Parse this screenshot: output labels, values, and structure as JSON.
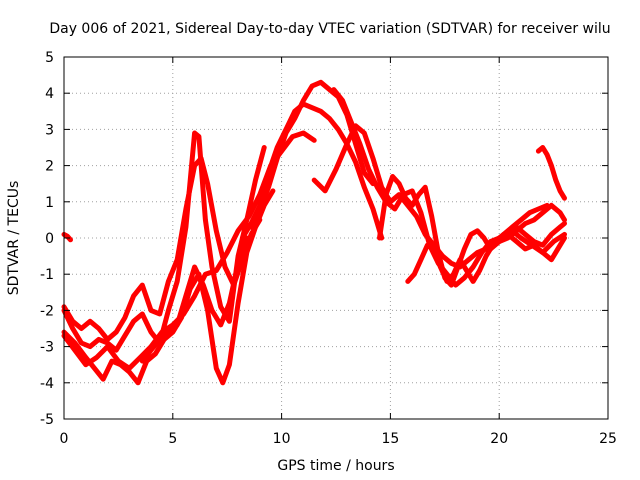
{
  "chart_data": {
    "type": "scatter",
    "title": "Day 006 of 2021, Sidereal Day-to-day VTEC variation (SDTVAR) for receiver wilu",
    "xlabel": "GPS time / hours",
    "ylabel": "SDTVAR / TECUs",
    "xlim": [
      0,
      25
    ],
    "ylim": [
      -5,
      5
    ],
    "xticks": [
      "0",
      "5",
      "10",
      "15",
      "20",
      "25"
    ],
    "yticks": [
      "-5",
      "-4",
      "-3",
      "-2",
      "-1",
      "0",
      "1",
      "2",
      "3",
      "4",
      "5"
    ],
    "grid": true,
    "marker": "+",
    "color": "#ff0000",
    "series": [
      {
        "name": "track-01",
        "x": [
          0.0,
          0.15,
          0.3
        ],
        "y": [
          0.1,
          0.05,
          -0.05
        ]
      },
      {
        "name": "track-02",
        "x": [
          0.0,
          0.4,
          0.8,
          1.2,
          1.6,
          2.0,
          2.4,
          2.8,
          3.2,
          3.6,
          4.0,
          4.4,
          4.8,
          5.2,
          5.6,
          6.0,
          6.3,
          6.6,
          7.0,
          7.4,
          7.8,
          8.2,
          8.6,
          9.0
        ],
        "y": [
          -1.9,
          -2.3,
          -2.5,
          -2.3,
          -2.5,
          -2.8,
          -2.6,
          -2.2,
          -1.6,
          -1.3,
          -2.0,
          -2.1,
          -1.2,
          -0.6,
          0.8,
          2.0,
          2.2,
          1.5,
          0.2,
          -0.8,
          -1.3,
          -0.6,
          0.1,
          0.5
        ]
      },
      {
        "name": "track-03",
        "x": [
          0.0,
          0.4,
          0.8,
          1.2,
          1.6,
          2.0,
          2.4,
          2.8,
          3.2,
          3.6,
          4.0,
          4.4,
          4.8,
          5.2,
          5.6,
          6.0,
          6.2,
          6.5,
          6.8,
          7.2,
          7.6,
          8.0,
          8.4,
          8.8,
          9.2
        ],
        "y": [
          -2.0,
          -2.5,
          -2.9,
          -3.0,
          -2.8,
          -2.9,
          -3.1,
          -2.7,
          -2.3,
          -2.1,
          -2.6,
          -2.9,
          -2.0,
          -1.2,
          0.3,
          2.9,
          2.8,
          0.5,
          -0.8,
          -1.9,
          -2.3,
          -0.5,
          0.5,
          1.6,
          2.5
        ]
      },
      {
        "name": "track-04",
        "x": [
          0.0,
          0.5,
          1.0,
          1.4,
          1.8,
          2.2,
          2.6,
          3.0,
          3.4,
          3.8,
          4.2,
          4.6,
          5.0,
          5.4,
          5.8,
          6.2,
          6.6,
          7.0,
          7.3,
          7.6,
          8.0,
          8.4,
          8.8,
          9.2,
          9.6
        ],
        "y": [
          -2.6,
          -2.9,
          -3.3,
          -3.6,
          -3.9,
          -3.4,
          -3.5,
          -3.7,
          -4.0,
          -3.4,
          -3.2,
          -2.8,
          -2.6,
          -2.2,
          -1.4,
          -1.0,
          -2.0,
          -3.6,
          -4.0,
          -3.5,
          -1.8,
          -0.4,
          0.3,
          0.9,
          1.3
        ]
      },
      {
        "name": "track-05",
        "x": [
          0.0,
          0.5,
          1.0,
          1.5,
          2.0,
          2.5,
          3.0,
          3.5,
          4.0,
          4.5,
          5.0,
          5.5,
          6.0,
          6.5,
          7.0,
          7.5,
          8.0,
          8.5,
          9.0,
          9.5,
          10.0,
          10.5,
          11.0,
          11.5
        ],
        "y": [
          -2.7,
          -3.1,
          -3.5,
          -3.3,
          -3.0,
          -3.4,
          -3.6,
          -3.3,
          -3.0,
          -2.6,
          -2.4,
          -2.1,
          -1.6,
          -1.0,
          -0.9,
          -0.4,
          0.2,
          0.6,
          1.2,
          2.0,
          2.4,
          2.8,
          2.9,
          2.7
        ]
      },
      {
        "name": "track-06",
        "x": [
          3.6,
          4.0,
          4.4,
          4.8,
          5.2,
          5.6,
          6.0,
          6.4,
          6.8,
          7.2,
          7.6,
          8.0,
          8.4
        ],
        "y": [
          -3.4,
          -3.1,
          -2.8,
          -2.6,
          -2.4,
          -1.6,
          -0.8,
          -1.3,
          -2.0,
          -2.4,
          -1.8,
          -0.7,
          0.0
        ]
      },
      {
        "name": "track-07",
        "x": [
          8.2,
          8.6,
          9.0,
          9.4,
          9.8,
          10.2,
          10.6,
          11.0,
          11.4,
          11.8,
          12.2,
          12.6,
          13.0,
          13.4,
          13.8,
          14.2,
          14.6
        ],
        "y": [
          0.0,
          0.4,
          0.9,
          1.8,
          2.5,
          3.0,
          3.5,
          3.7,
          3.6,
          3.5,
          3.3,
          3.0,
          2.6,
          2.1,
          1.4,
          0.8,
          0.0
        ]
      },
      {
        "name": "track-08",
        "x": [
          8.6,
          9.0,
          9.4,
          9.8,
          10.2,
          10.6,
          11.0,
          11.4,
          11.8,
          12.2,
          12.6,
          13.0,
          13.4,
          13.8,
          14.2
        ],
        "y": [
          0.3,
          0.8,
          1.4,
          2.2,
          2.9,
          3.3,
          3.8,
          4.2,
          4.3,
          4.1,
          3.9,
          3.4,
          2.6,
          1.8,
          1.5
        ]
      },
      {
        "name": "track-09",
        "x": [
          11.5,
          12.0,
          12.5,
          13.0,
          13.4,
          13.8,
          14.2,
          14.6,
          15.0,
          15.4,
          15.8,
          16.2,
          16.6,
          17.0,
          17.4,
          17.8,
          18.2,
          18.6,
          19.0,
          19.4,
          19.8,
          20.2,
          20.6,
          21.0,
          21.5,
          22.0,
          22.5,
          23.0
        ],
        "y": [
          1.6,
          1.3,
          1.9,
          2.6,
          3.1,
          2.9,
          2.2,
          1.4,
          1.0,
          1.2,
          0.9,
          0.6,
          0.1,
          -0.2,
          -0.5,
          -0.7,
          -0.8,
          -0.6,
          -0.4,
          -0.3,
          -0.1,
          0.1,
          0.2,
          0.0,
          -0.2,
          -0.4,
          -0.1,
          0.1
        ]
      },
      {
        "name": "track-10",
        "x": [
          12.4,
          12.8,
          13.2,
          13.6,
          14.0,
          14.4,
          14.8,
          15.2,
          15.6,
          16.0,
          16.4,
          16.8,
          17.2,
          17.6,
          18.0,
          18.4,
          18.8,
          19.2,
          19.6,
          20.0,
          20.4,
          20.8,
          21.2,
          21.6,
          22.0,
          22.4,
          22.8,
          23.0
        ],
        "y": [
          4.1,
          3.8,
          3.2,
          2.6,
          1.9,
          1.4,
          1.0,
          0.8,
          1.2,
          1.3,
          0.7,
          -0.2,
          -0.7,
          -1.0,
          -1.3,
          -1.1,
          -0.8,
          -0.4,
          -0.1,
          0.0,
          0.1,
          -0.1,
          -0.3,
          -0.2,
          -0.4,
          -0.6,
          -0.2,
          0.0
        ]
      },
      {
        "name": "track-11",
        "x": [
          14.5,
          14.8,
          15.1,
          15.4,
          15.7,
          16.0,
          16.3,
          16.6,
          16.9,
          17.2,
          17.5,
          17.8,
          18.1,
          18.4,
          18.7,
          19.0,
          19.3,
          19.6,
          20.0,
          20.4,
          20.8,
          21.2,
          21.6,
          22.0,
          22.4,
          22.8,
          23.0
        ],
        "y": [
          0.0,
          1.2,
          1.7,
          1.5,
          1.1,
          0.9,
          1.2,
          1.4,
          0.6,
          -0.4,
          -1.1,
          -1.3,
          -0.8,
          -0.3,
          0.1,
          0.2,
          0.0,
          -0.3,
          -0.1,
          0.0,
          0.2,
          0.4,
          0.5,
          0.7,
          0.9,
          0.7,
          0.5
        ]
      },
      {
        "name": "track-12",
        "x": [
          15.8,
          16.1,
          16.4,
          16.7,
          17.0,
          17.3,
          17.6,
          17.9,
          18.2,
          18.5,
          18.8,
          19.1,
          19.4,
          19.7,
          20.0,
          20.4,
          20.8,
          21.2,
          21.6,
          22.0,
          22.4,
          22.8,
          23.0
        ],
        "y": [
          -1.2,
          -1.0,
          -0.6,
          -0.2,
          -0.3,
          -0.8,
          -1.2,
          -1.0,
          -0.6,
          -0.9,
          -1.2,
          -0.9,
          -0.5,
          -0.2,
          -0.1,
          0.1,
          0.3,
          0.1,
          -0.1,
          -0.2,
          0.1,
          0.3,
          0.4
        ]
      },
      {
        "name": "track-13",
        "x": [
          20.2,
          20.6,
          21.0,
          21.4,
          21.8,
          22.2
        ],
        "y": [
          0.1,
          0.3,
          0.5,
          0.7,
          0.8,
          0.9
        ]
      },
      {
        "name": "track-14",
        "x": [
          21.8,
          22.0,
          22.2,
          22.4,
          22.6,
          22.8,
          23.0
        ],
        "y": [
          2.4,
          2.5,
          2.3,
          2.0,
          1.6,
          1.3,
          1.1
        ]
      }
    ]
  }
}
